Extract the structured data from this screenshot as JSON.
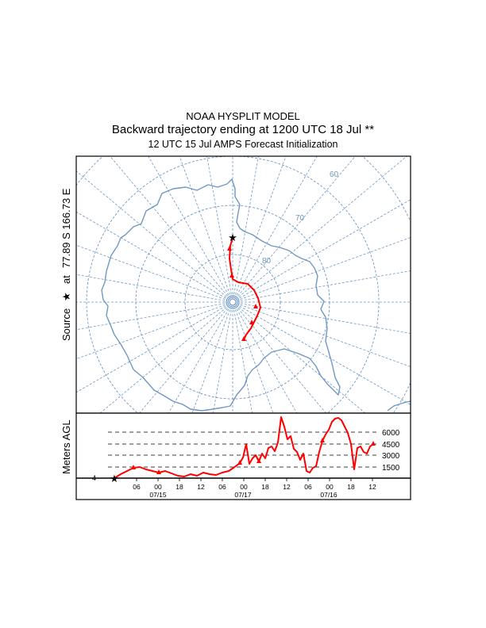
{
  "header": {
    "model": "NOAA HYSPLIT MODEL",
    "subtitle": "Backward trajectory ending at 1200 UTC 18 Jul **",
    "init": "12 UTC 15 Jul    AMPS  Forecast Initialization"
  },
  "map": {
    "source_label": "Source",
    "source_at": "at",
    "source_coords": "77.89 S  166.73 E",
    "lat_circle_labels": [
      "60",
      "70",
      "80"
    ],
    "colors": {
      "grid": "#6f98c4",
      "coast": "#6f98c4",
      "trajectory": "#ff0000",
      "frame": "#000000"
    }
  },
  "profile": {
    "ylabel": "Meters AGL",
    "levels": [
      "6000",
      "4500",
      "3000",
      "1500"
    ],
    "start_level_label": "4",
    "hour_ticks": [
      "06",
      "00",
      "18",
      "12",
      "06",
      "00",
      "18",
      "12",
      "06",
      "00",
      "18",
      "12"
    ],
    "date_labels": [
      "07/15",
      "07/17",
      "07/16"
    ]
  }
}
